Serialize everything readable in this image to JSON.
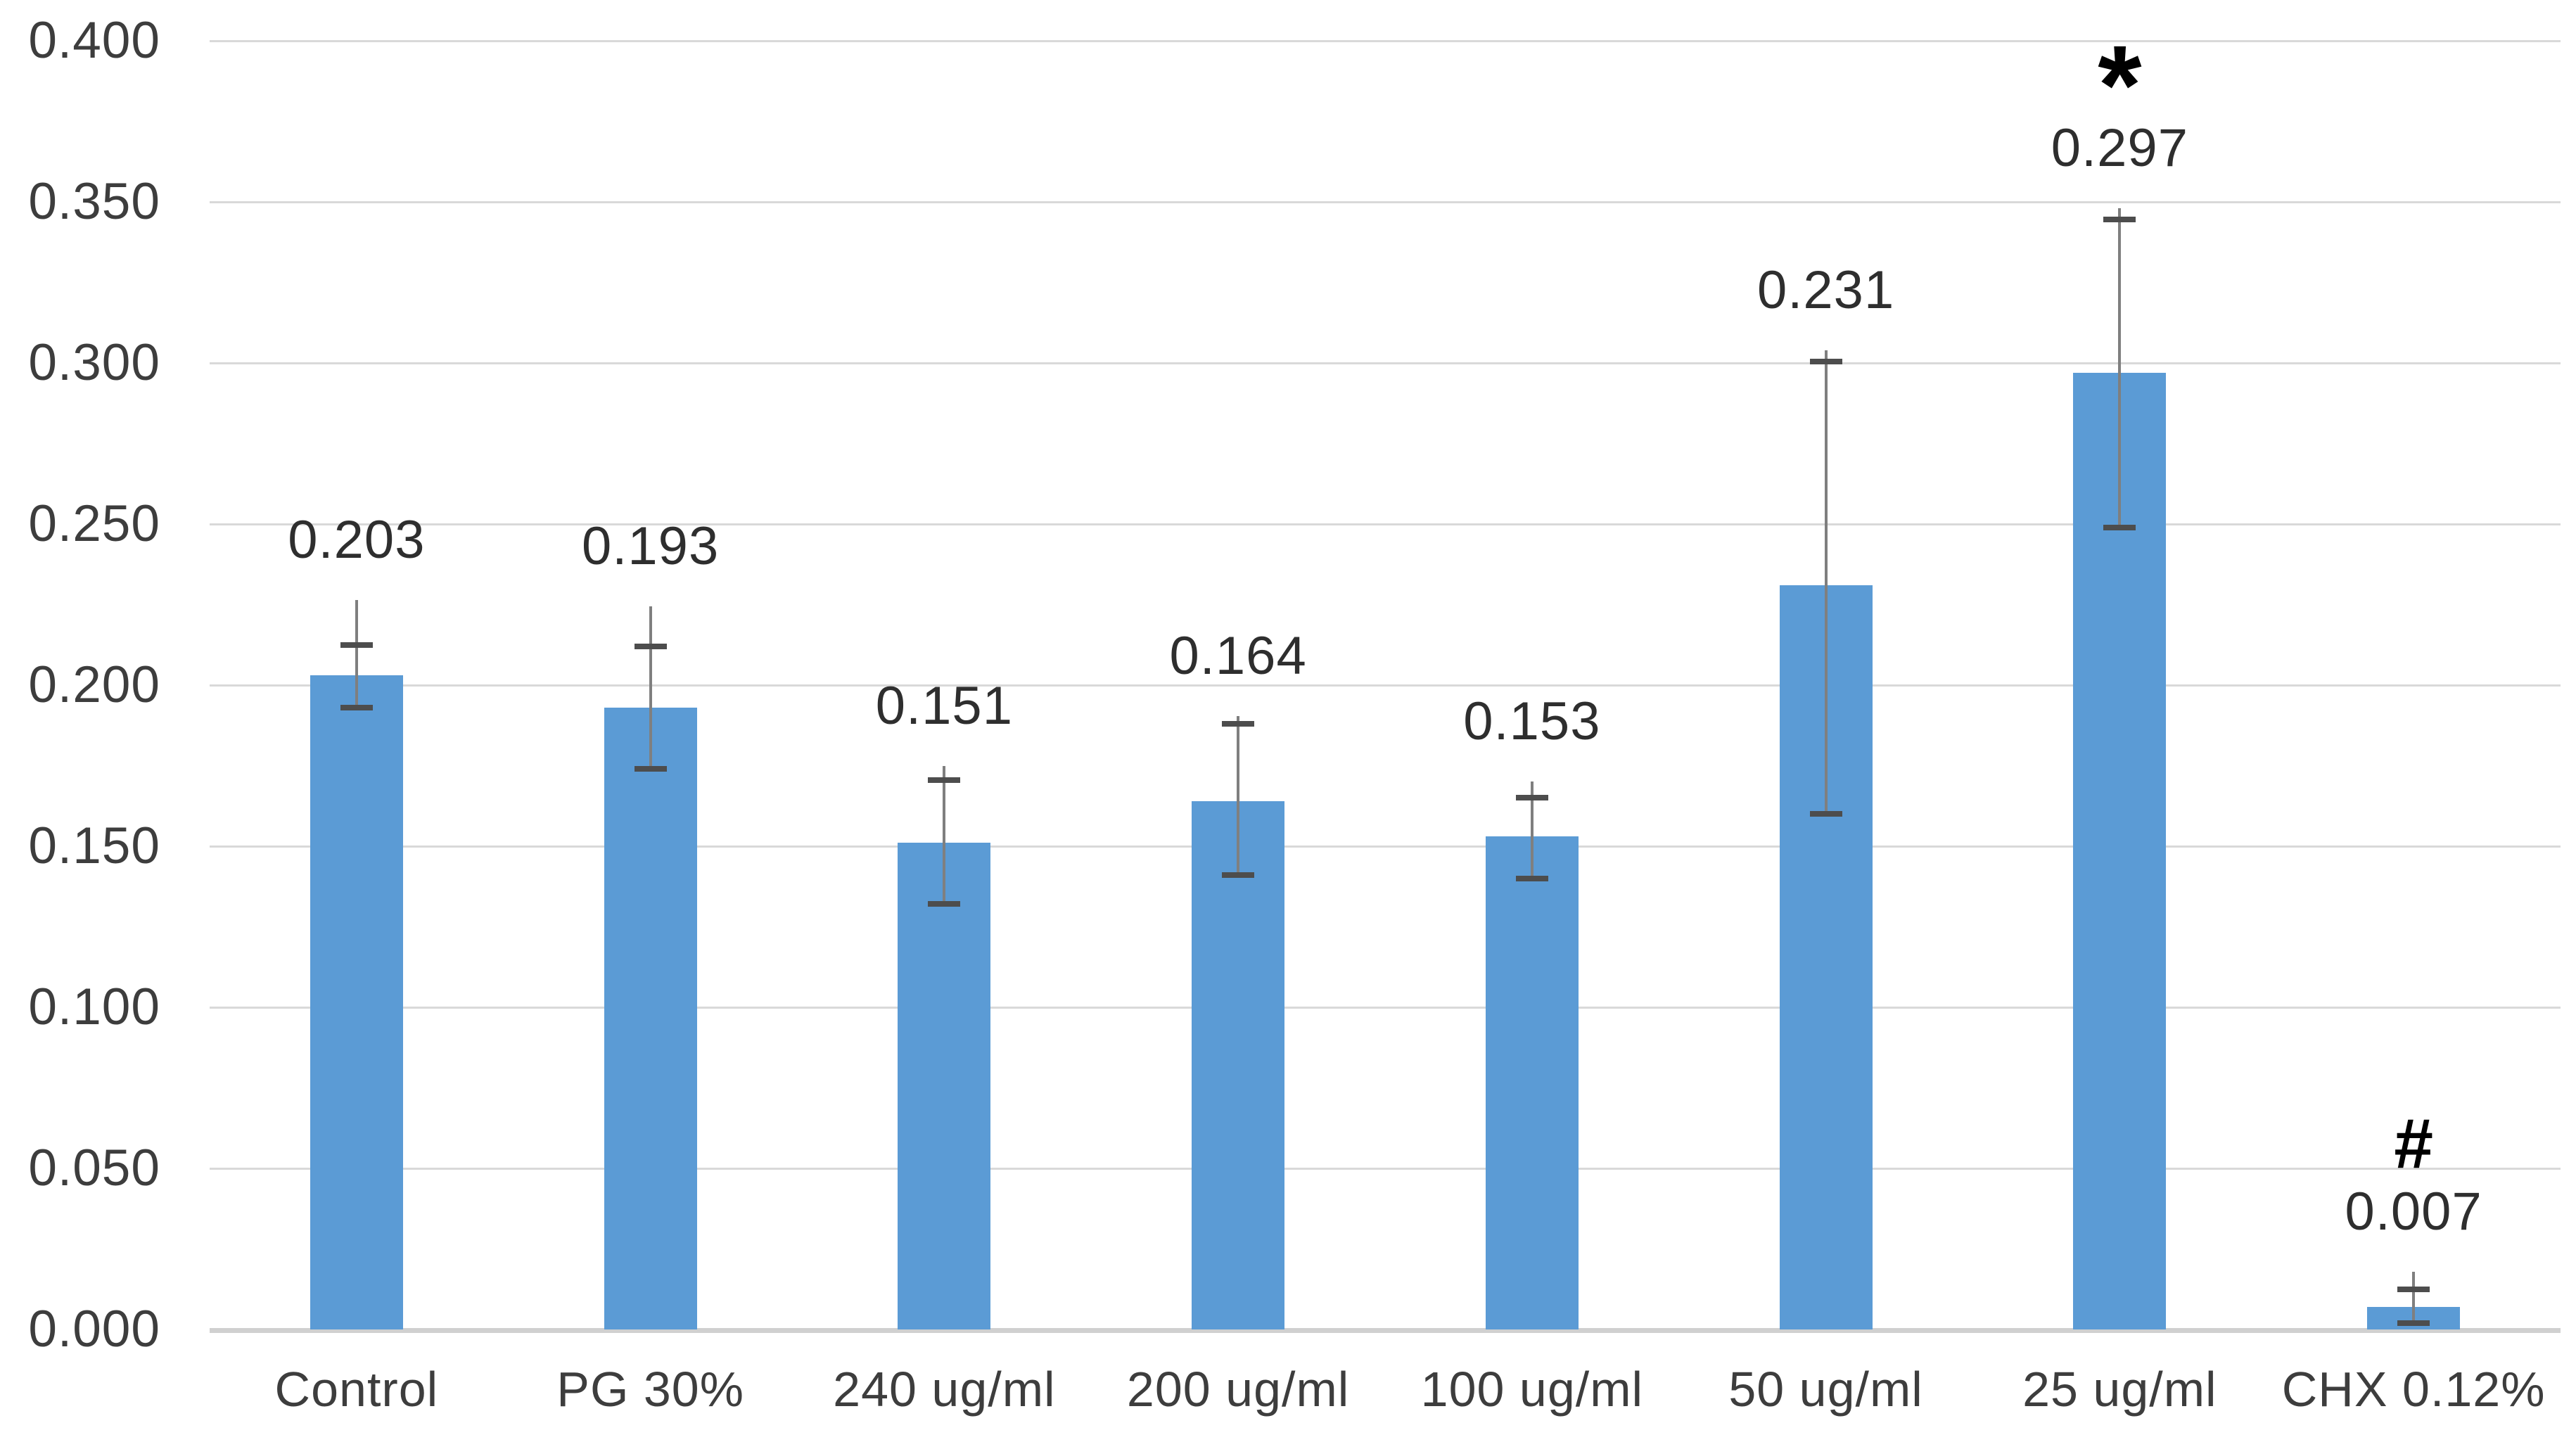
{
  "chart_data": {
    "type": "bar",
    "title": "",
    "xlabel": "",
    "ylabel": "",
    "categories": [
      "Control",
      "PG 30%",
      "240 ug/ml",
      "200 ug/ml",
      "100 ug/ml",
      "50 ug/ml",
      "25 ug/ml",
      "CHX 0.12%"
    ],
    "values": [
      0.203,
      0.193,
      0.151,
      0.164,
      0.153,
      0.231,
      0.297,
      0.007
    ],
    "data_labels": [
      "0.203",
      "0.193",
      "0.151",
      "0.164",
      "0.153",
      "0.231",
      "0.297",
      "0.007"
    ],
    "annotations": [
      "",
      "",
      "",
      "",
      "",
      "",
      "*",
      "#"
    ],
    "error_bars": [
      {
        "low": 0.193,
        "cap": 0.2125,
        "high": 0.2265
      },
      {
        "low": 0.174,
        "cap": 0.212,
        "high": 0.2245
      },
      {
        "low": 0.132,
        "cap": 0.1705,
        "high": 0.175
      },
      {
        "low": 0.141,
        "cap": 0.188,
        "high": 0.1905
      },
      {
        "low": 0.14,
        "cap": 0.165,
        "high": 0.17
      },
      {
        "low": 0.16,
        "cap": 0.3005,
        "high": 0.304
      },
      {
        "low": 0.249,
        "cap": 0.3445,
        "high": 0.348
      },
      {
        "low": 0.002,
        "cap": 0.0125,
        "high": 0.018
      }
    ],
    "y_ticks": [
      "0.400",
      "0.350",
      "0.300",
      "0.250",
      "0.200",
      "0.150",
      "0.100",
      "0.050",
      "0.000"
    ],
    "ylim": [
      0.0,
      0.4
    ],
    "y_step": 0.05,
    "grid": true,
    "legend": false,
    "colors": {
      "bar": "#5B9BD5",
      "gridline": "#D9D9D9",
      "axis_line": "#D0D0D0",
      "error_cap": "#4D4D4D",
      "error_line": "#7F7F7F",
      "label_text": "#2E2E2E",
      "tick_text": "#3D3D3D",
      "annotation_text": "#000000"
    }
  }
}
